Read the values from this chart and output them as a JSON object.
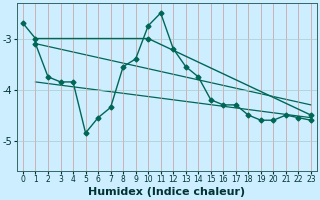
{
  "xlabel": "Humidex (Indice chaleur)",
  "background_color": "#cceeff",
  "grid_color": "#aacccc",
  "line_color": "#006655",
  "xlim": [
    -0.5,
    23.5
  ],
  "ylim": [
    -5.6,
    -2.3
  ],
  "yticks": [
    -5,
    -4,
    -3
  ],
  "xticks": [
    0,
    1,
    2,
    3,
    4,
    5,
    6,
    7,
    8,
    9,
    10,
    11,
    12,
    13,
    14,
    15,
    16,
    17,
    18,
    19,
    20,
    21,
    22,
    23
  ],
  "series1_x": [
    0,
    1,
    10,
    23
  ],
  "series1_y": [
    -2.7,
    -3.0,
    -3.0,
    -4.5
  ],
  "series2_x": [
    1,
    2,
    3,
    4,
    5,
    6,
    7,
    8,
    9,
    10,
    11,
    12,
    13,
    14,
    15,
    16,
    17,
    18,
    19,
    20,
    21,
    22,
    23
  ],
  "series2_y": [
    -3.1,
    -3.75,
    -3.85,
    -3.85,
    -4.85,
    -4.55,
    -4.35,
    -3.55,
    -3.4,
    -2.75,
    -2.5,
    -3.2,
    -3.55,
    -3.75,
    -4.2,
    -4.3,
    -4.3,
    -4.5,
    -4.6,
    -4.6,
    -4.5,
    -4.55,
    -4.6
  ],
  "trend1_x": [
    1,
    23
  ],
  "trend1_y": [
    -3.1,
    -4.3
  ],
  "trend2_x": [
    1,
    23
  ],
  "trend2_y": [
    -3.85,
    -4.55
  ],
  "font_size_label": 8,
  "tick_font_size": 6.5
}
